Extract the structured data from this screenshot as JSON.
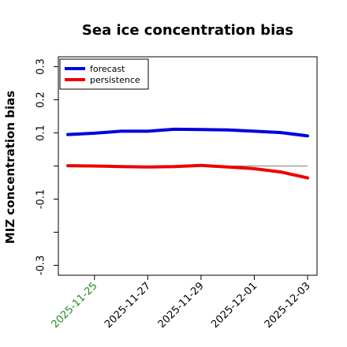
{
  "chart_data": {
    "type": "line",
    "title": "Sea ice concentration bias",
    "xlabel": "",
    "ylabel": "MIZ concentration bias",
    "x": [
      "2025-11-24",
      "2025-11-25",
      "2025-11-26",
      "2025-11-27",
      "2025-11-28",
      "2025-11-29",
      "2025-11-30",
      "2025-12-01",
      "2025-12-02",
      "2025-12-03"
    ],
    "xticks": [
      "2025-11-25",
      "2025-11-27",
      "2025-11-29",
      "2025-12-01",
      "2025-12-03"
    ],
    "xtick_colors": [
      "#228B22",
      "#000000",
      "#000000",
      "#000000",
      "#000000"
    ],
    "ylim": [
      -0.33,
      0.33
    ],
    "yticks": [
      -0.3,
      -0.2,
      -0.1,
      0.0,
      0.1,
      0.2,
      0.3
    ],
    "ytick_labels": [
      "-0.3",
      "",
      "-0.1",
      "",
      "0.1",
      "0.2",
      "0.3"
    ],
    "zero_line": true,
    "grid": false,
    "legend": "top-left",
    "series": [
      {
        "name": "forecast",
        "color": "#0000dd",
        "values": [
          0.095,
          0.099,
          0.105,
          0.105,
          0.111,
          0.11,
          0.109,
          0.105,
          0.101,
          0.091
        ]
      },
      {
        "name": "persistence",
        "color": "#ee0000",
        "values": [
          0.001,
          0.0,
          -0.002,
          -0.003,
          -0.002,
          0.002,
          -0.003,
          -0.008,
          -0.018,
          -0.036
        ]
      }
    ]
  }
}
